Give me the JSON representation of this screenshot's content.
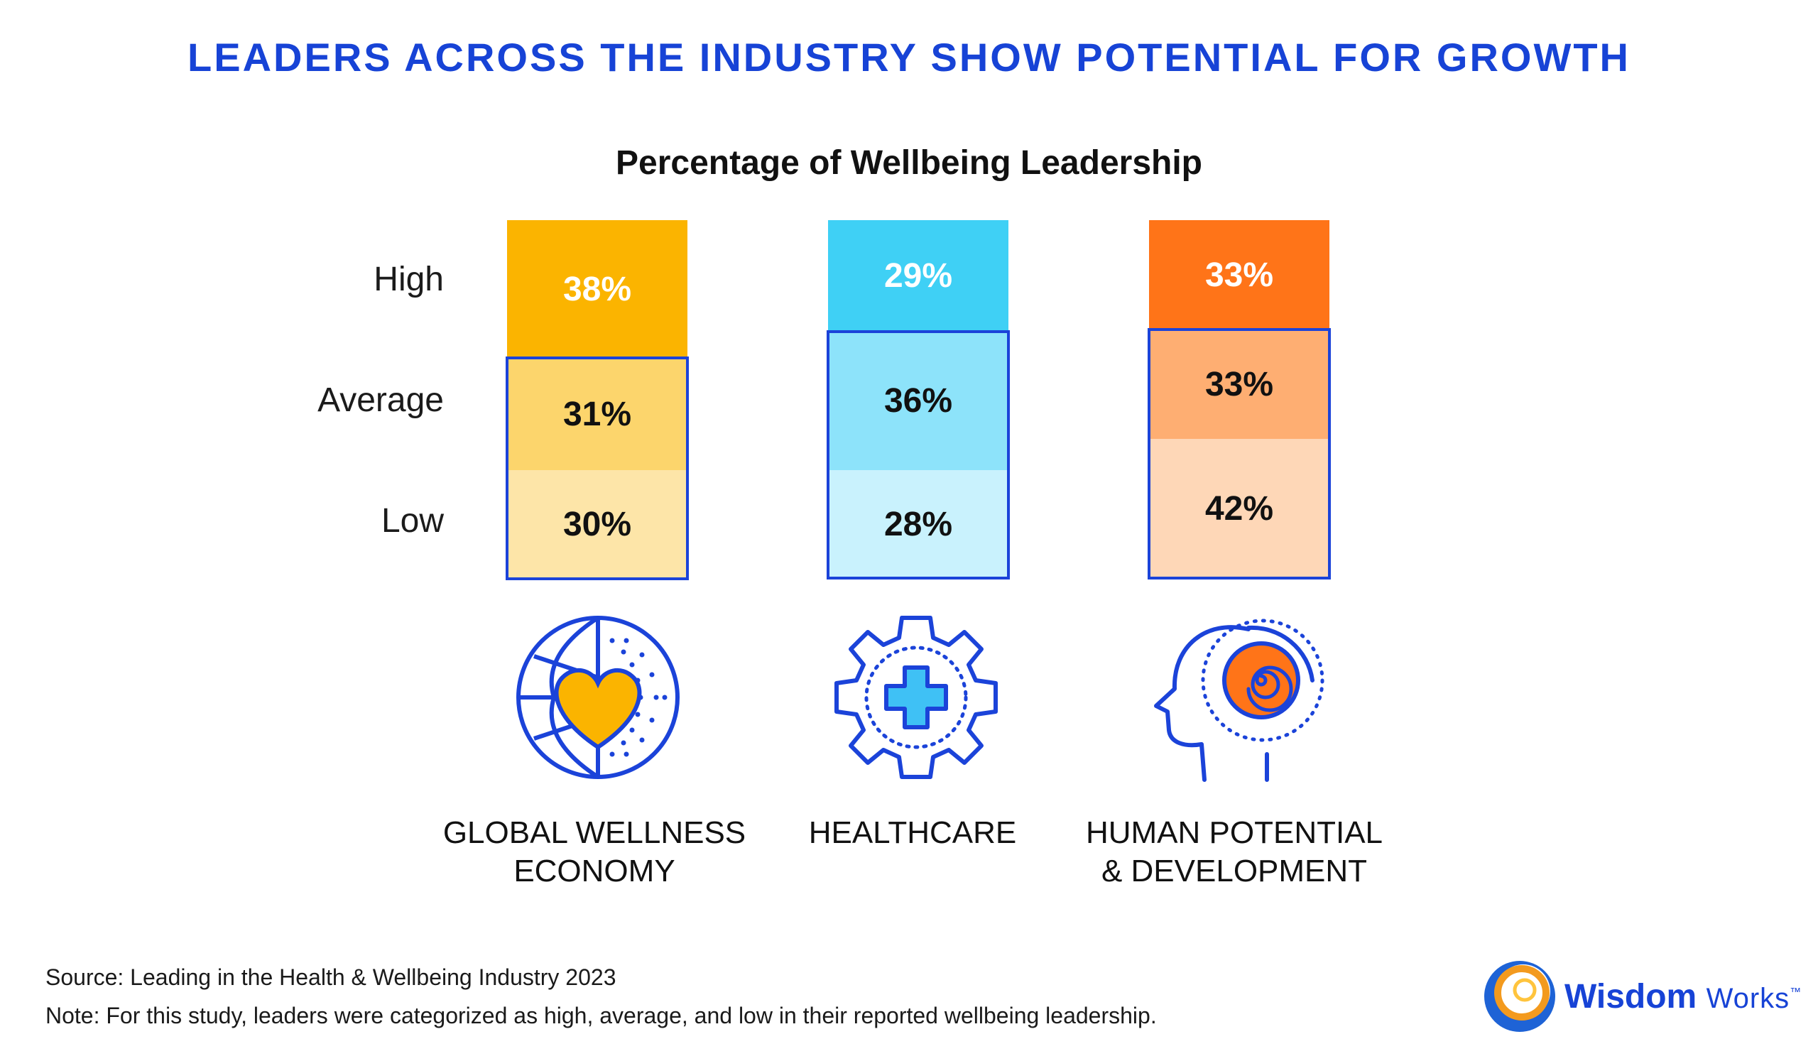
{
  "headline": "LEADERS ACROSS THE INDUSTRY SHOW POTENTIAL FOR GROWTH",
  "chart_data": {
    "type": "bar",
    "stacked": true,
    "title": "Percentage of Wellbeing Leadership",
    "row_labels": [
      "High",
      "Average",
      "Low"
    ],
    "categories": [
      "GLOBAL WELLNESS ECONOMY",
      "HEALTHCARE",
      "HUMAN POTENTIAL & DEVELOPMENT"
    ],
    "series": [
      {
        "name": "High",
        "values": [
          38,
          29,
          33
        ],
        "labels": [
          "38%",
          "29%",
          "33%"
        ]
      },
      {
        "name": "Average",
        "values": [
          31,
          36,
          33
        ],
        "labels": [
          "31%",
          "36%",
          "33%"
        ]
      },
      {
        "name": "Low",
        "values": [
          30,
          28,
          42
        ],
        "labels": [
          "30%",
          "28%",
          "42%"
        ]
      }
    ],
    "colors": [
      [
        "#fbb400",
        "#fcd56c",
        "#fde5a8"
      ],
      [
        "#3fd0f5",
        "#8de3fa",
        "#c9f2fd"
      ],
      [
        "#ff7418",
        "#feae72",
        "#fed7b7"
      ]
    ],
    "highlight_border": "#1b43d9"
  },
  "categories_display": [
    {
      "line1": "GLOBAL WELLNESS",
      "line2": "ECONOMY",
      "icon": "globe-heart-icon"
    },
    {
      "line1": "HEALTHCARE",
      "line2": "",
      "icon": "gear-medical-cross-icon"
    },
    {
      "line1": "HUMAN POTENTIAL",
      "line2": "& DEVELOPMENT",
      "icon": "head-spiral-icon"
    }
  ],
  "footer": {
    "source": "Source: Leading in the Health & Wellbeing Industry 2023",
    "note": "Note: For this study, leaders were categorized as high, average, and low in their reported wellbeing leadership."
  },
  "logo": {
    "word1": "Wisdom",
    "word2": "Works",
    "tm": "™"
  },
  "colors": {
    "brand_blue": "#1743d6",
    "icon_blue": "#1b43d9",
    "heart_yellow": "#fbb400",
    "spiral_orange": "#ff7418",
    "cross_fill": "#3fc1f5"
  }
}
